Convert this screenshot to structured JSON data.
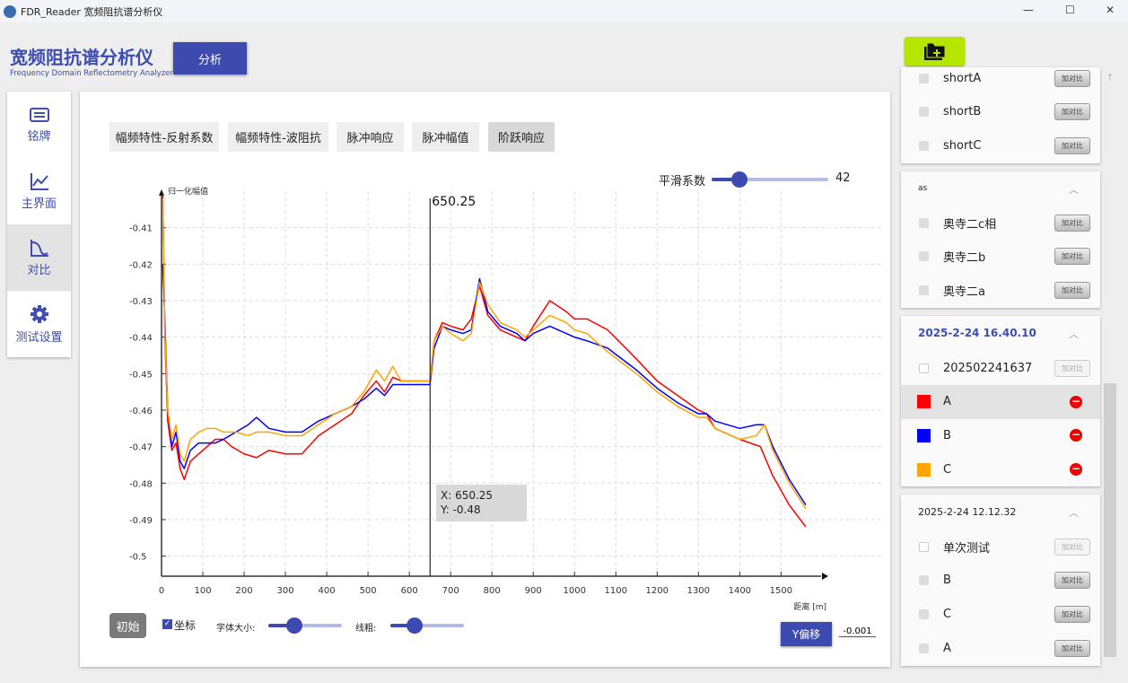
{
  "window": {
    "title": "FDR_Reader 宽频阻抗谱分析仪",
    "minimize": "—",
    "maximize": "☐",
    "close": "✕"
  },
  "brand": {
    "title": "宽频阻抗谱分析仪",
    "subtitle": "Frequency Domain Reflectometry Analyzer"
  },
  "analyze_button": "分析",
  "nav": [
    {
      "label": "铭牌",
      "icon": "nameplate-icon"
    },
    {
      "label": "主界面",
      "icon": "line-chart-icon"
    },
    {
      "label": "对比",
      "icon": "compare-icon",
      "active": true
    },
    {
      "label": "测试设置",
      "icon": "gear-icon"
    }
  ],
  "tabs": [
    {
      "label": "幅频特性-反射系数"
    },
    {
      "label": "幅频特性-波阻抗"
    },
    {
      "label": "脉冲响应"
    },
    {
      "label": "脉冲幅值"
    },
    {
      "label": "阶跃响应",
      "active": true
    }
  ],
  "smoothing": {
    "label": "平滑系数",
    "value": 42,
    "fraction": 0.24
  },
  "cursor": {
    "label": "650.25",
    "tooltip_x": "X: 650.25",
    "tooltip_y": "Y: -0.48"
  },
  "controls": {
    "reset": "初始",
    "coords_label": "坐标",
    "coords_checked": true,
    "font_size_label": "字体大小:",
    "font_size_fraction": 0.35,
    "line_width_label": "线粗:",
    "line_width_fraction": 0.33,
    "yshift_button": "Y偏移",
    "yshift_value": "-0.001"
  },
  "chart_data": {
    "type": "line",
    "ylabel": "归一化幅值",
    "xlabel": "距离 [m]",
    "xlim": [
      0,
      1597
    ],
    "ylim": [
      -0.5055,
      -0.4
    ],
    "xticks": [
      0,
      100,
      200,
      300,
      400,
      500,
      600,
      700,
      800,
      900,
      1000,
      1100,
      1200,
      1300,
      1400,
      1500
    ],
    "yticks": [
      -0.41,
      -0.42,
      -0.43,
      -0.44,
      -0.45,
      -0.46,
      -0.47,
      -0.48,
      -0.49,
      -0.5
    ],
    "grid": true,
    "series": [
      {
        "name": "A",
        "color": "#ff0000",
        "points": [
          [
            3,
            -0.401
          ],
          [
            8,
            -0.44
          ],
          [
            15,
            -0.463
          ],
          [
            25,
            -0.471
          ],
          [
            35,
            -0.469
          ],
          [
            45,
            -0.476
          ],
          [
            55,
            -0.479
          ],
          [
            70,
            -0.474
          ],
          [
            90,
            -0.472
          ],
          [
            110,
            -0.47
          ],
          [
            130,
            -0.468
          ],
          [
            150,
            -0.468
          ],
          [
            170,
            -0.47
          ],
          [
            200,
            -0.472
          ],
          [
            230,
            -0.473
          ],
          [
            260,
            -0.471
          ],
          [
            300,
            -0.472
          ],
          [
            340,
            -0.472
          ],
          [
            380,
            -0.467
          ],
          [
            420,
            -0.464
          ],
          [
            460,
            -0.461
          ],
          [
            490,
            -0.456
          ],
          [
            520,
            -0.452
          ],
          [
            540,
            -0.455
          ],
          [
            560,
            -0.451
          ],
          [
            580,
            -0.452
          ],
          [
            610,
            -0.452
          ],
          [
            650,
            -0.452
          ],
          [
            660,
            -0.441
          ],
          [
            680,
            -0.436
          ],
          [
            700,
            -0.437
          ],
          [
            730,
            -0.438
          ],
          [
            750,
            -0.435
          ],
          [
            770,
            -0.426
          ],
          [
            790,
            -0.434
          ],
          [
            820,
            -0.438
          ],
          [
            860,
            -0.44
          ],
          [
            880,
            -0.441
          ],
          [
            900,
            -0.437
          ],
          [
            940,
            -0.43
          ],
          [
            980,
            -0.433
          ],
          [
            1000,
            -0.435
          ],
          [
            1030,
            -0.435
          ],
          [
            1080,
            -0.438
          ],
          [
            1150,
            -0.446
          ],
          [
            1200,
            -0.452
          ],
          [
            1250,
            -0.456
          ],
          [
            1300,
            -0.46
          ],
          [
            1320,
            -0.461
          ],
          [
            1340,
            -0.465
          ],
          [
            1400,
            -0.468
          ],
          [
            1450,
            -0.47
          ],
          [
            1480,
            -0.478
          ],
          [
            1520,
            -0.486
          ],
          [
            1560,
            -0.492
          ]
        ]
      },
      {
        "name": "B",
        "color": "#0000ff",
        "points": [
          [
            3,
            -0.42
          ],
          [
            8,
            -0.435
          ],
          [
            15,
            -0.46
          ],
          [
            25,
            -0.47
          ],
          [
            35,
            -0.466
          ],
          [
            45,
            -0.474
          ],
          [
            55,
            -0.476
          ],
          [
            70,
            -0.471
          ],
          [
            90,
            -0.469
          ],
          [
            110,
            -0.469
          ],
          [
            130,
            -0.469
          ],
          [
            150,
            -0.468
          ],
          [
            180,
            -0.466
          ],
          [
            210,
            -0.464
          ],
          [
            230,
            -0.462
          ],
          [
            260,
            -0.465
          ],
          [
            300,
            -0.466
          ],
          [
            340,
            -0.466
          ],
          [
            380,
            -0.463
          ],
          [
            420,
            -0.461
          ],
          [
            460,
            -0.459
          ],
          [
            490,
            -0.457
          ],
          [
            520,
            -0.454
          ],
          [
            540,
            -0.456
          ],
          [
            560,
            -0.453
          ],
          [
            580,
            -0.453
          ],
          [
            610,
            -0.453
          ],
          [
            650,
            -0.453
          ],
          [
            660,
            -0.443
          ],
          [
            680,
            -0.437
          ],
          [
            700,
            -0.438
          ],
          [
            730,
            -0.439
          ],
          [
            750,
            -0.438
          ],
          [
            770,
            -0.424
          ],
          [
            790,
            -0.433
          ],
          [
            820,
            -0.437
          ],
          [
            860,
            -0.439
          ],
          [
            880,
            -0.441
          ],
          [
            900,
            -0.439
          ],
          [
            940,
            -0.437
          ],
          [
            980,
            -0.439
          ],
          [
            1000,
            -0.44
          ],
          [
            1030,
            -0.441
          ],
          [
            1080,
            -0.443
          ],
          [
            1150,
            -0.449
          ],
          [
            1200,
            -0.454
          ],
          [
            1250,
            -0.458
          ],
          [
            1300,
            -0.461
          ],
          [
            1320,
            -0.461
          ],
          [
            1340,
            -0.463
          ],
          [
            1400,
            -0.465
          ],
          [
            1440,
            -0.464
          ],
          [
            1460,
            -0.464
          ],
          [
            1480,
            -0.47
          ],
          [
            1520,
            -0.479
          ],
          [
            1560,
            -0.486
          ]
        ]
      },
      {
        "name": "C",
        "color": "#ffa500",
        "points": [
          [
            3,
            -0.402
          ],
          [
            8,
            -0.438
          ],
          [
            15,
            -0.46
          ],
          [
            25,
            -0.468
          ],
          [
            35,
            -0.464
          ],
          [
            45,
            -0.472
          ],
          [
            55,
            -0.474
          ],
          [
            70,
            -0.468
          ],
          [
            90,
            -0.466
          ],
          [
            110,
            -0.465
          ],
          [
            130,
            -0.465
          ],
          [
            150,
            -0.466
          ],
          [
            180,
            -0.466
          ],
          [
            210,
            -0.467
          ],
          [
            230,
            -0.466
          ],
          [
            260,
            -0.466
          ],
          [
            300,
            -0.467
          ],
          [
            340,
            -0.467
          ],
          [
            380,
            -0.464
          ],
          [
            420,
            -0.461
          ],
          [
            460,
            -0.459
          ],
          [
            490,
            -0.455
          ],
          [
            520,
            -0.449
          ],
          [
            540,
            -0.452
          ],
          [
            560,
            -0.448
          ],
          [
            580,
            -0.452
          ],
          [
            610,
            -0.452
          ],
          [
            650,
            -0.452
          ],
          [
            660,
            -0.441
          ],
          [
            680,
            -0.437
          ],
          [
            700,
            -0.439
          ],
          [
            730,
            -0.441
          ],
          [
            750,
            -0.439
          ],
          [
            770,
            -0.425
          ],
          [
            790,
            -0.431
          ],
          [
            820,
            -0.436
          ],
          [
            860,
            -0.438
          ],
          [
            880,
            -0.44
          ],
          [
            900,
            -0.438
          ],
          [
            940,
            -0.434
          ],
          [
            980,
            -0.436
          ],
          [
            1000,
            -0.438
          ],
          [
            1030,
            -0.439
          ],
          [
            1080,
            -0.444
          ],
          [
            1150,
            -0.45
          ],
          [
            1200,
            -0.455
          ],
          [
            1250,
            -0.459
          ],
          [
            1300,
            -0.462
          ],
          [
            1320,
            -0.462
          ],
          [
            1340,
            -0.465
          ],
          [
            1400,
            -0.468
          ],
          [
            1440,
            -0.467
          ],
          [
            1460,
            -0.464
          ],
          [
            1480,
            -0.471
          ],
          [
            1520,
            -0.48
          ],
          [
            1560,
            -0.487
          ]
        ]
      }
    ]
  },
  "right_panel": {
    "group1": {
      "items": [
        {
          "label": "shortA",
          "button": "加对比"
        },
        {
          "label": "shortB",
          "button": "加对比"
        },
        {
          "label": "shortC",
          "button": "加对比"
        }
      ]
    },
    "group2": {
      "title": "as",
      "items": [
        {
          "label": "奥寺二c相",
          "button": "加对比"
        },
        {
          "label": "奥寺二b",
          "button": "加对比"
        },
        {
          "label": "奥寺二a",
          "button": "加对比"
        }
      ]
    },
    "group3": {
      "title": "2025-2-24 16.40.10",
      "title_color": "#3d4db0",
      "items": [
        {
          "label": "202502241637",
          "button": "加对比",
          "checked": false,
          "disabled": true
        },
        {
          "label": "A",
          "color": "#ff0000",
          "selected": true
        },
        {
          "label": "B",
          "color": "#0000ff"
        },
        {
          "label": "C",
          "color": "#ffa500"
        }
      ]
    },
    "group4": {
      "title": "2025-2-24 12.12.32",
      "items": [
        {
          "label": "单次测试",
          "button": "加对比",
          "checked": false,
          "disabled": true
        },
        {
          "label": "B",
          "button": "加对比"
        },
        {
          "label": "C",
          "button": "加对比"
        },
        {
          "label": "A",
          "button": "加对比"
        }
      ]
    }
  }
}
